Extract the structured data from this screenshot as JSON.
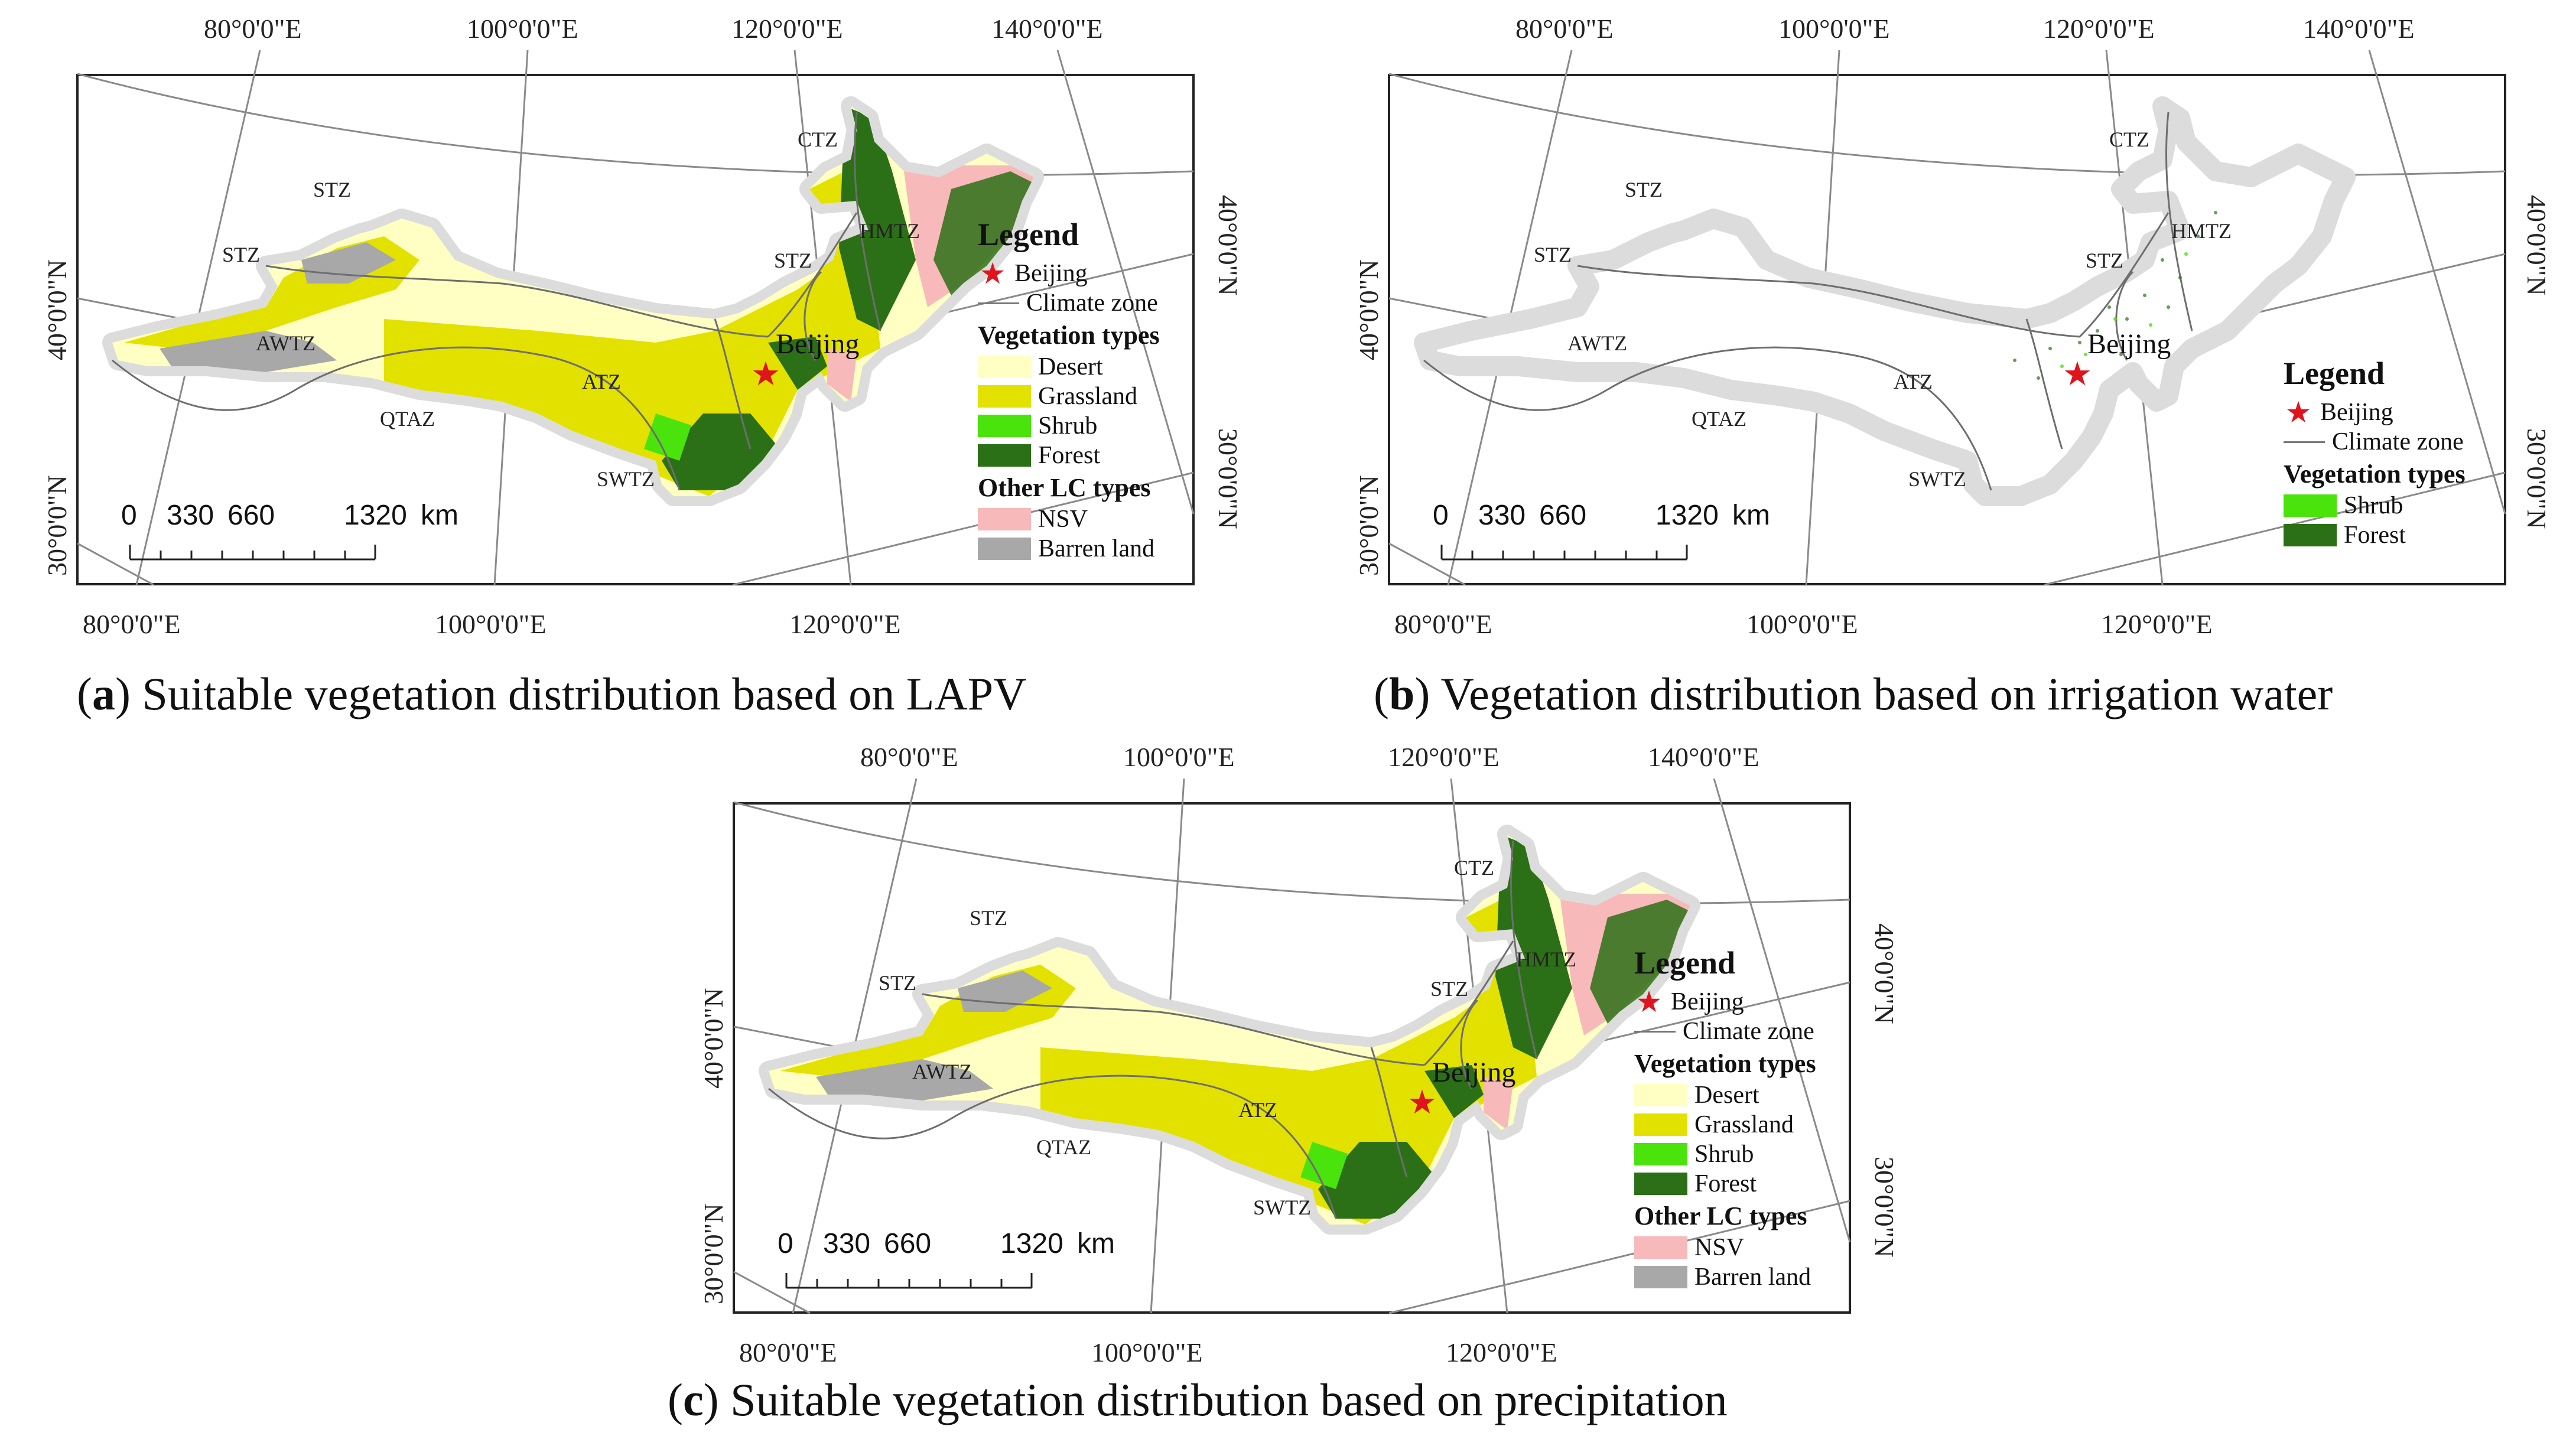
{
  "colors": {
    "desert": "#ffffc4",
    "grassland": "#e3e100",
    "shrub": "#4ae30c",
    "forest": "#2b7016",
    "nsv": "#f8b9ba",
    "barren": "#a8a8a8",
    "halo": "#dcdcdc",
    "zone_line": "#6e6e6e",
    "star": "#e0141c"
  },
  "icons": {
    "beijing": "star-icon",
    "climate_zone": "line-icon"
  },
  "top_lon_labels": [
    "80°0'0\"E",
    "100°0'0\"E",
    "120°0'0\"E",
    "140°0'0\"E"
  ],
  "bottom_lon_labels": [
    "80°0'0\"E",
    "100°0'0\"E",
    "120°0'0\"E"
  ],
  "lat_labels": [
    "40°0'0\"N",
    "30°0'0\"N"
  ],
  "zones": [
    "CTZ",
    "HMTZ",
    "STZ",
    "STZ",
    "STZ",
    "AWTZ",
    "ATZ",
    "QTAZ",
    "SWTZ"
  ],
  "city": "Beijing",
  "scale_bar": {
    "labels": [
      "0",
      "330",
      "660",
      "1320"
    ],
    "unit": "km"
  },
  "legend": {
    "title": "Legend",
    "beijing": "Beijing",
    "climate_zone": "Climate zone",
    "veg_header": "Vegetation types",
    "veg": [
      "Desert",
      "Grassland",
      "Shrub",
      "Forest"
    ],
    "veg_b": [
      "Shrub",
      "Forest"
    ],
    "other_header": "Other LC types",
    "other": [
      "NSV",
      "Barren land"
    ]
  },
  "captions": {
    "a": {
      "letter": "a",
      "text": "Suitable vegetation distribution based on LAPV"
    },
    "b": {
      "letter": "b",
      "text": "Vegetation distribution based on irrigation water"
    },
    "c": {
      "letter": "c",
      "text": "Suitable vegetation distribution based on precipitation"
    }
  }
}
